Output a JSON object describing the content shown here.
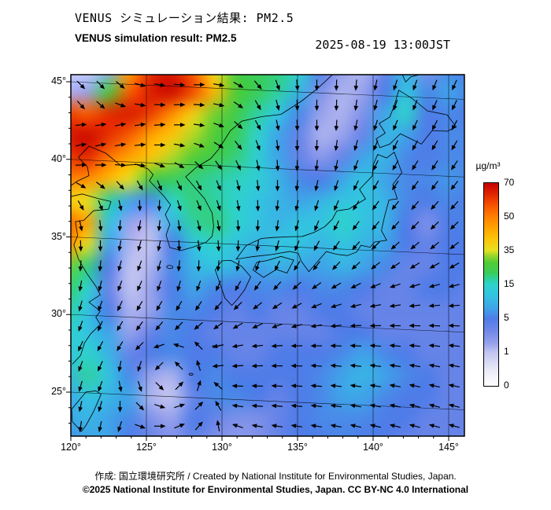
{
  "header": {
    "title_ja": "VENUS シミュレーション結果: PM2.5",
    "title_en": "VENUS simulation result: PM2.5",
    "datetime": "2025-08-19 13:00JST"
  },
  "axes": {
    "lat_labels": [
      "45°",
      "40°",
      "35°",
      "30°",
      "25°"
    ],
    "lon_labels": [
      "120°",
      "125°",
      "130°",
      "135°",
      "140°",
      "145°"
    ]
  },
  "colorbar": {
    "unit": "µg/m³",
    "tick_labels": [
      "70",
      "50",
      "35",
      "15",
      "5",
      "1",
      "0"
    ]
  },
  "footer": {
    "credit": "作成: 国立環境研究所 / Created by National Institute for Environmental Studies, Japan.",
    "license": "©2025 National Institute for Environmental Studies, Japan. CC BY-NC 4.0 International"
  },
  "chart_data": {
    "type": "heatmap",
    "title": "VENUS simulation result: PM2.5",
    "variable": "PM2.5 surface concentration with wind vectors",
    "unit": "µg/m³",
    "datetime": "2025-08-19 13:00JST",
    "lon_range": [
      120,
      145
    ],
    "lat_range": [
      22.5,
      46.5
    ],
    "lon_tick_values": [
      120,
      125,
      130,
      135,
      140,
      145
    ],
    "lat_tick_values": [
      45,
      40,
      35,
      30,
      25
    ],
    "colorbar_ticks": [
      0,
      1,
      5,
      15,
      35,
      50,
      70
    ],
    "color_scale": [
      {
        "v": 0,
        "c": "#ffffff"
      },
      {
        "v": 0.5,
        "c": "#e8e8f8"
      },
      {
        "v": 1,
        "c": "#c0c4f0"
      },
      {
        "v": 2,
        "c": "#98a2ec"
      },
      {
        "v": 3.5,
        "c": "#7188e8"
      },
      {
        "v": 5,
        "c": "#4f7ce8"
      },
      {
        "v": 8,
        "c": "#3fa4e8"
      },
      {
        "v": 12,
        "c": "#33c4e0"
      },
      {
        "v": 15,
        "c": "#2ed2cc"
      },
      {
        "v": 18,
        "c": "#2fd0a0"
      },
      {
        "v": 22,
        "c": "#3bcc58"
      },
      {
        "v": 28,
        "c": "#52cc34"
      },
      {
        "v": 32,
        "c": "#9ad42c"
      },
      {
        "v": 35,
        "c": "#e6e020"
      },
      {
        "v": 40,
        "c": "#fcc60a"
      },
      {
        "v": 45,
        "c": "#ffa400"
      },
      {
        "v": 50,
        "c": "#ff8000"
      },
      {
        "v": 57,
        "c": "#f55200"
      },
      {
        "v": 63,
        "c": "#e22800"
      },
      {
        "v": 70,
        "c": "#c40000"
      }
    ],
    "grid_note": "pm25_grid: 18 rows (north 46.5N -> south 22.5N) x 20 cols (west 120E -> east 145E), estimated µg/m³. wind_deg_grid: arrow directions, 0=E 90=N 180=W 270=S.",
    "pm25_grid": [
      [
        1,
        0.8,
        2,
        45,
        62,
        65,
        55,
        35,
        25,
        22,
        20,
        15,
        5,
        2,
        1.5,
        4,
        10,
        3,
        6,
        5
      ],
      [
        1.5,
        2,
        25,
        55,
        65,
        68,
        58,
        42,
        28,
        22,
        18,
        10,
        3,
        1.5,
        2,
        5,
        12,
        6,
        8,
        6
      ],
      [
        60,
        55,
        62,
        65,
        60,
        48,
        38,
        30,
        24,
        18,
        12,
        6,
        2,
        1.5,
        3,
        8,
        15,
        5,
        6,
        5
      ],
      [
        65,
        68,
        62,
        55,
        45,
        40,
        33,
        27,
        22,
        15,
        8,
        4,
        1.5,
        2,
        4,
        10,
        8,
        5,
        6,
        6
      ],
      [
        60,
        63,
        52,
        45,
        40,
        33,
        28,
        24,
        20,
        14,
        8,
        4,
        2.5,
        4,
        8,
        10,
        6,
        5,
        6,
        6
      ],
      [
        50,
        48,
        42,
        35,
        25,
        22,
        20,
        18,
        16,
        14,
        10,
        6,
        5,
        8,
        12,
        8,
        6,
        6,
        7,
        6
      ],
      [
        38,
        35,
        18,
        8,
        6,
        15,
        20,
        18,
        15,
        12,
        10,
        8,
        10,
        12,
        12,
        10,
        6,
        5,
        6,
        5
      ],
      [
        55,
        45,
        12,
        2,
        1.5,
        10,
        18,
        20,
        15,
        12,
        10,
        12,
        12,
        15,
        12,
        10,
        5,
        3,
        5,
        6
      ],
      [
        50,
        35,
        8,
        1.5,
        1,
        5,
        12,
        15,
        12,
        10,
        12,
        12,
        10,
        12,
        10,
        8,
        5,
        4,
        5,
        5
      ],
      [
        30,
        20,
        5,
        1,
        1.5,
        6,
        10,
        12,
        10,
        8,
        10,
        8,
        8,
        10,
        8,
        6,
        4,
        4,
        5,
        5
      ],
      [
        22,
        15,
        4,
        1,
        2,
        5,
        8,
        6,
        5,
        6,
        6,
        5,
        6,
        6,
        5,
        4,
        4,
        5,
        5,
        4
      ],
      [
        18,
        12,
        5,
        1.5,
        2,
        6,
        6,
        5,
        4,
        5,
        4,
        4,
        5,
        5,
        4,
        4,
        4,
        4,
        4,
        4
      ],
      [
        15,
        12,
        8,
        2,
        4,
        6,
        5,
        4,
        4,
        4,
        4,
        4,
        4,
        5,
        5,
        4,
        4,
        4,
        4,
        4
      ],
      [
        12,
        15,
        10,
        4,
        5,
        6,
        5,
        5,
        4,
        4,
        5,
        5,
        5,
        6,
        8,
        6,
        5,
        4,
        4,
        4
      ],
      [
        10,
        18,
        12,
        6,
        2,
        1.5,
        5,
        6,
        5,
        5,
        5,
        5,
        6,
        8,
        10,
        8,
        6,
        5,
        4,
        4
      ],
      [
        8,
        12,
        10,
        8,
        1.5,
        1,
        4,
        6,
        6,
        5,
        4,
        5,
        6,
        8,
        8,
        6,
        5,
        5,
        4,
        4
      ],
      [
        8,
        10,
        8,
        6,
        3,
        2,
        5,
        4,
        3,
        3,
        4,
        5,
        6,
        6,
        6,
        5,
        5,
        4,
        4,
        4
      ],
      [
        6,
        8,
        8,
        5,
        4,
        3,
        4,
        3,
        2.5,
        3,
        4,
        5,
        5,
        6,
        5,
        5,
        4,
        4,
        4,
        4
      ]
    ],
    "wind_deg_grid": [
      [
        315,
        315,
        320,
        345,
        350,
        355,
        0,
        350,
        330,
        310,
        290,
        275,
        270,
        268,
        265,
        258,
        252,
        250,
        248,
        246
      ],
      [
        312,
        318,
        340,
        350,
        358,
        0,
        356,
        348,
        325,
        300,
        285,
        272,
        270,
        268,
        262,
        255,
        250,
        248,
        246,
        244
      ],
      [
        5,
        8,
        10,
        8,
        4,
        0,
        352,
        340,
        318,
        298,
        282,
        272,
        270,
        266,
        258,
        252,
        248,
        245,
        243,
        242
      ],
      [
        10,
        12,
        10,
        6,
        0,
        350,
        340,
        328,
        308,
        290,
        278,
        270,
        268,
        262,
        254,
        248,
        244,
        242,
        240,
        240
      ],
      [
        2,
        0,
        356,
        350,
        340,
        330,
        318,
        306,
        295,
        282,
        274,
        268,
        264,
        258,
        250,
        244,
        240,
        238,
        238,
        236
      ],
      [
        330,
        322,
        312,
        300,
        292,
        296,
        298,
        292,
        284,
        276,
        270,
        264,
        258,
        252,
        244,
        240,
        236,
        234,
        234,
        232
      ],
      [
        300,
        292,
        282,
        272,
        268,
        288,
        292,
        288,
        280,
        272,
        264,
        258,
        252,
        246,
        238,
        234,
        232,
        230,
        228,
        228
      ],
      [
        282,
        276,
        266,
        260,
        264,
        278,
        284,
        280,
        274,
        268,
        262,
        254,
        248,
        242,
        234,
        230,
        228,
        226,
        224,
        224
      ],
      [
        272,
        270,
        260,
        255,
        258,
        272,
        278,
        274,
        268,
        262,
        254,
        248,
        242,
        236,
        228,
        224,
        222,
        220,
        219,
        218
      ],
      [
        266,
        264,
        255,
        250,
        254,
        264,
        268,
        264,
        258,
        250,
        244,
        238,
        232,
        227,
        222,
        218,
        214,
        212,
        210,
        210
      ],
      [
        260,
        256,
        250,
        246,
        250,
        254,
        250,
        246,
        240,
        234,
        228,
        222,
        216,
        211,
        207,
        203,
        199,
        197,
        195,
        194
      ],
      [
        255,
        250,
        245,
        240,
        240,
        240,
        236,
        230,
        224,
        218,
        213,
        208,
        203,
        198,
        194,
        190,
        188,
        186,
        184,
        184
      ],
      [
        250,
        246,
        240,
        234,
        230,
        226,
        220,
        215,
        210,
        205,
        200,
        195,
        190,
        186,
        183,
        181,
        180,
        179,
        178,
        178
      ],
      [
        246,
        242,
        239,
        225,
        198,
        162,
        135,
        192,
        189,
        186,
        184,
        181,
        180,
        178,
        177,
        176,
        175,
        175,
        174,
        174
      ],
      [
        250,
        246,
        259,
        252,
        225,
        135,
        108,
        186,
        184,
        182,
        180,
        178,
        176,
        175,
        174,
        173,
        172,
        171,
        170,
        170
      ],
      [
        254,
        250,
        281,
        288,
        315,
        45,
        72,
        140,
        178,
        178,
        177,
        176,
        175,
        174,
        172,
        171,
        170,
        169,
        168,
        168
      ],
      [
        258,
        254,
        270,
        315,
        342,
        18,
        45,
        120,
        172,
        175,
        175,
        174,
        173,
        172,
        170,
        169,
        168,
        167,
        166,
        166
      ],
      [
        262,
        258,
        252,
        340,
        0,
        22,
        48,
        100,
        162,
        170,
        171,
        171,
        171,
        170,
        168,
        167,
        166,
        165,
        165,
        164
      ]
    ]
  }
}
